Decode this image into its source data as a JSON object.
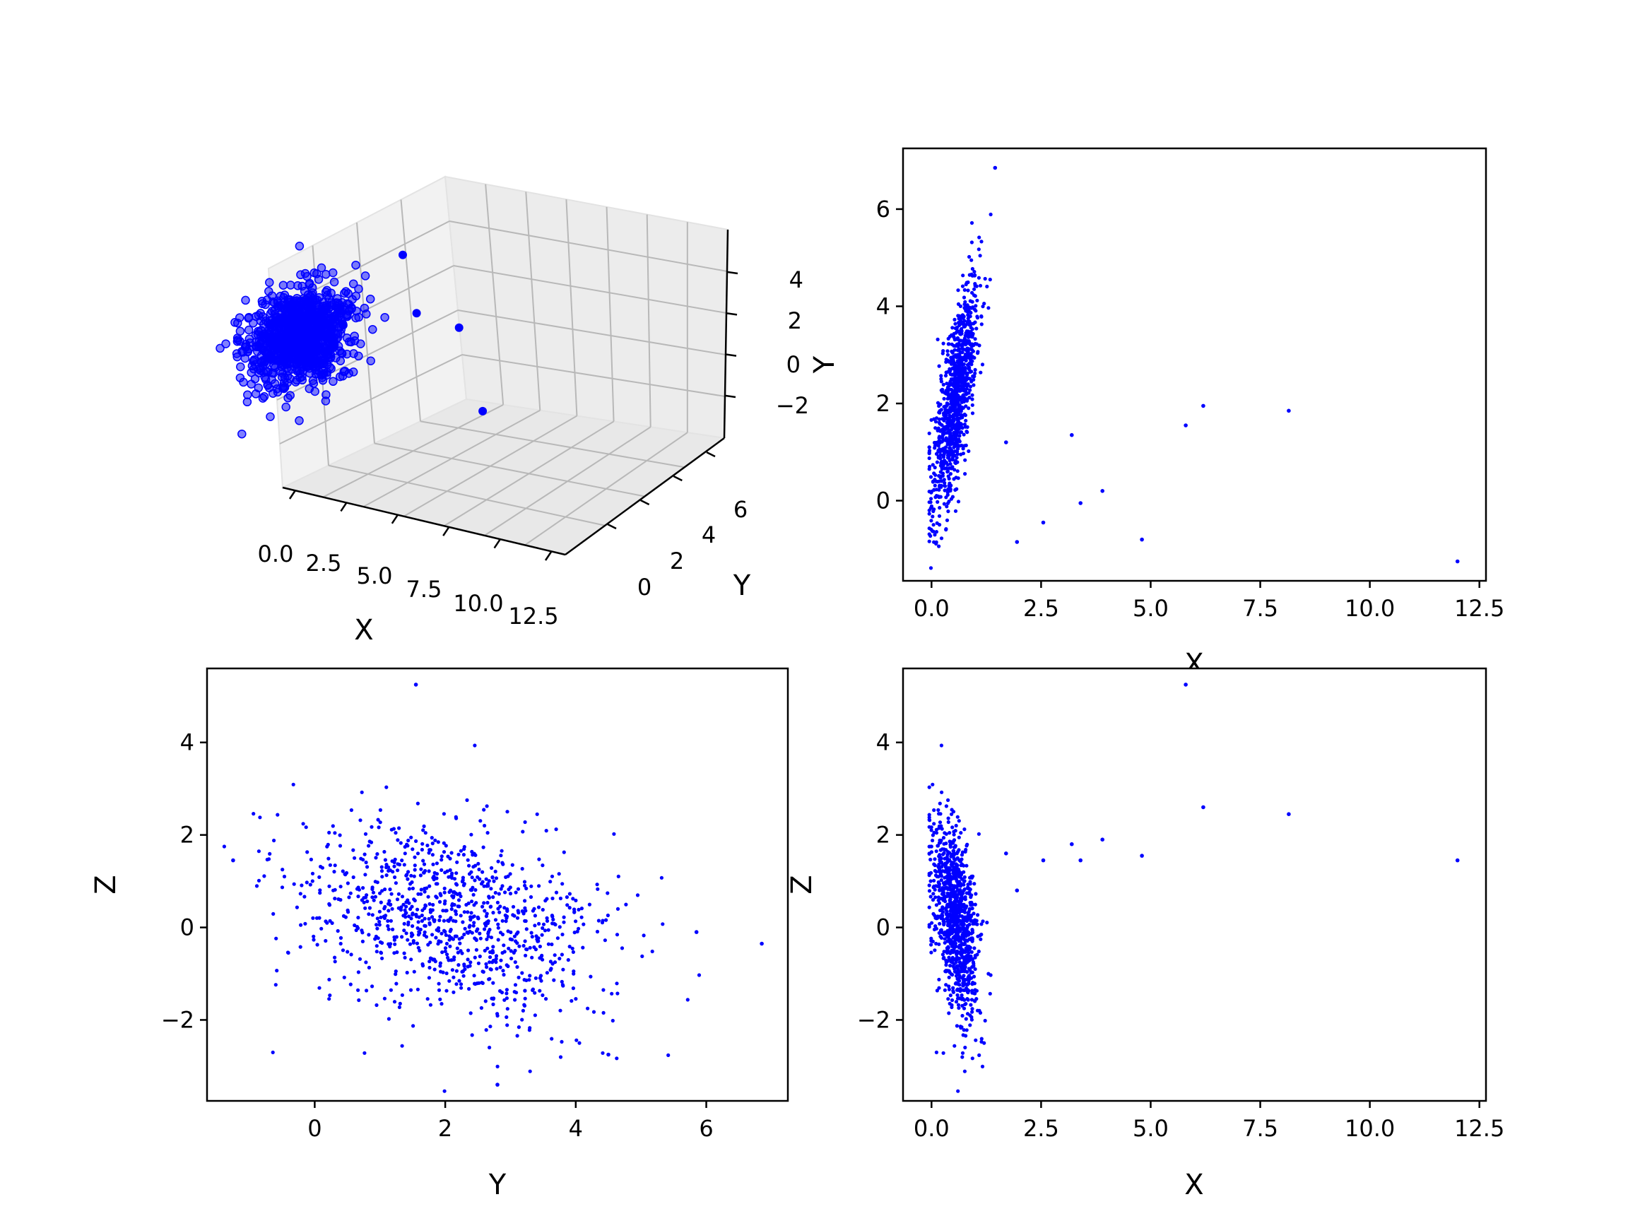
{
  "chart_data": [
    {
      "panel": "3d",
      "type": "scatter",
      "xlabel": "X",
      "ylabel": "Y",
      "zlabel": "",
      "xticks": [
        "0.0",
        "2.5",
        "5.0",
        "7.5",
        "10.0",
        "12.5"
      ],
      "yticks": [
        "0",
        "2",
        "4",
        "6"
      ],
      "zticks": [
        "−2",
        "0",
        "2",
        "4"
      ],
      "color": "#0000ff",
      "outliers": [
        {
          "x": 1.7,
          "y": 1.2,
          "z": 1.6
        },
        {
          "x": 3.2,
          "y": 1.3,
          "z": 1.8
        },
        {
          "x": 5.8,
          "y": 1.6,
          "z": 5.3
        },
        {
          "x": 6.2,
          "y": 1.9,
          "z": 2.6
        },
        {
          "x": 8.2,
          "y": 1.9,
          "z": 2.4
        },
        {
          "x": 12.0,
          "y": -1.3,
          "z": 1.4
        }
      ]
    },
    {
      "panel": "xy",
      "type": "scatter",
      "xlabel": "X",
      "ylabel": "Y",
      "xlim": [
        -0.65,
        12.65
      ],
      "ylim": [
        -1.65,
        7.25
      ],
      "xticks": [
        0,
        2.5,
        5,
        7.5,
        10,
        12.5
      ],
      "xtick_labels": [
        "0.0",
        "2.5",
        "5.0",
        "7.5",
        "10.0",
        "12.5"
      ],
      "yticks": [
        0,
        2,
        4,
        6
      ],
      "ytick_labels": [
        "0",
        "2",
        "4",
        "6"
      ],
      "color": "#0000ff",
      "outliers": [
        {
          "x": 1.45,
          "y": 6.85
        },
        {
          "x": 1.7,
          "y": 1.2
        },
        {
          "x": 1.95,
          "y": -0.85
        },
        {
          "x": 2.55,
          "y": -0.45
        },
        {
          "x": 3.2,
          "y": 1.35
        },
        {
          "x": 3.4,
          "y": -0.05
        },
        {
          "x": 3.9,
          "y": 0.2
        },
        {
          "x": 4.8,
          "y": -0.8
        },
        {
          "x": 5.8,
          "y": 1.55
        },
        {
          "x": 6.2,
          "y": 1.95
        },
        {
          "x": 8.15,
          "y": 1.85
        },
        {
          "x": 12.0,
          "y": -1.25
        }
      ]
    },
    {
      "panel": "yz",
      "type": "scatter",
      "xlabel": "Y",
      "ylabel": "Z",
      "xlim": [
        -1.65,
        7.25
      ],
      "ylim": [
        -3.75,
        5.6
      ],
      "xticks": [
        0,
        2,
        4,
        6
      ],
      "xtick_labels": [
        "0",
        "2",
        "4",
        "6"
      ],
      "yticks": [
        -2,
        0,
        2,
        4
      ],
      "ytick_labels": [
        "−2",
        "0",
        "2",
        "4"
      ],
      "color": "#0000ff",
      "outliers": [
        {
          "x": 1.55,
          "y": 5.25
        },
        {
          "x": 6.85,
          "y": -0.35
        },
        {
          "x": 5.85,
          "y": -0.1
        },
        {
          "x": -1.25,
          "y": 1.45
        },
        {
          "x": 2.8,
          "y": -3.4
        },
        {
          "x": 4.5,
          "y": -2.75
        }
      ]
    },
    {
      "panel": "xz",
      "type": "scatter",
      "xlabel": "X",
      "ylabel": "Z",
      "xlim": [
        -0.65,
        12.65
      ],
      "ylim": [
        -3.75,
        5.6
      ],
      "xticks": [
        0,
        2.5,
        5,
        7.5,
        10,
        12.5
      ],
      "xtick_labels": [
        "0.0",
        "2.5",
        "5.0",
        "7.5",
        "10.0",
        "12.5"
      ],
      "yticks": [
        -2,
        0,
        2,
        4
      ],
      "ytick_labels": [
        "−2",
        "0",
        "2",
        "4"
      ],
      "color": "#0000ff",
      "outliers": [
        {
          "x": 1.7,
          "y": 1.6
        },
        {
          "x": 1.95,
          "y": 0.8
        },
        {
          "x": 2.55,
          "y": 1.45
        },
        {
          "x": 3.2,
          "y": 1.8
        },
        {
          "x": 3.4,
          "y": 1.45
        },
        {
          "x": 3.9,
          "y": 1.9
        },
        {
          "x": 4.8,
          "y": 1.55
        },
        {
          "x": 5.8,
          "y": 5.25
        },
        {
          "x": 6.2,
          "y": 2.6
        },
        {
          "x": 8.15,
          "y": 2.45
        },
        {
          "x": 12.0,
          "y": 1.45
        }
      ]
    }
  ]
}
